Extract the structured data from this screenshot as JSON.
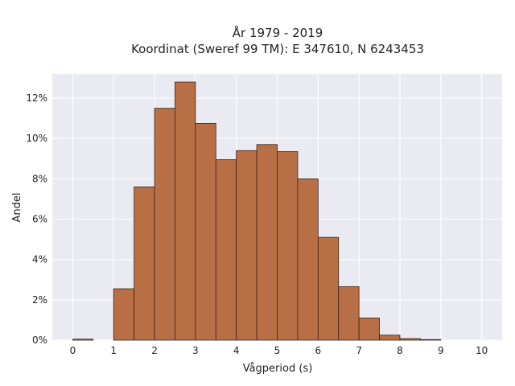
{
  "chart_data": {
    "type": "bar",
    "title_line1": "År 1979 - 2019",
    "title_line2": "Koordinat (Sweref 99 TM): E 347610, N 6243453",
    "xlabel": "Vågperiod (s)",
    "ylabel": "Andel",
    "xlim": [
      -0.5,
      10.5
    ],
    "ylim": [
      0,
      13.2
    ],
    "x_ticks": [
      0,
      1,
      2,
      3,
      4,
      5,
      6,
      7,
      8,
      9,
      10
    ],
    "y_ticks": [
      {
        "value": 0,
        "label": "0%"
      },
      {
        "value": 2,
        "label": "2%"
      },
      {
        "value": 4,
        "label": "4%"
      },
      {
        "value": 6,
        "label": "6%"
      },
      {
        "value": 8,
        "label": "8%"
      },
      {
        "value": 10,
        "label": "10%"
      },
      {
        "value": 12,
        "label": "12%"
      }
    ],
    "bin_width": 0.5,
    "bins": [
      {
        "start": 0.0,
        "value": 0.05
      },
      {
        "start": 0.5,
        "value": 0.0
      },
      {
        "start": 1.0,
        "value": 2.55
      },
      {
        "start": 1.5,
        "value": 7.6
      },
      {
        "start": 2.0,
        "value": 11.5
      },
      {
        "start": 2.5,
        "value": 12.8
      },
      {
        "start": 3.0,
        "value": 10.75
      },
      {
        "start": 3.5,
        "value": 8.95
      },
      {
        "start": 4.0,
        "value": 9.4
      },
      {
        "start": 4.5,
        "value": 9.7
      },
      {
        "start": 5.0,
        "value": 9.35
      },
      {
        "start": 5.5,
        "value": 8.0
      },
      {
        "start": 6.0,
        "value": 5.1
      },
      {
        "start": 6.5,
        "value": 2.65
      },
      {
        "start": 7.0,
        "value": 1.1
      },
      {
        "start": 7.5,
        "value": 0.25
      },
      {
        "start": 8.0,
        "value": 0.08
      },
      {
        "start": 8.5,
        "value": 0.03
      },
      {
        "start": 9.0,
        "value": 0.0
      },
      {
        "start": 9.5,
        "value": 0.0
      }
    ],
    "grid": true,
    "legend": "none",
    "colors": {
      "bar_fill": "#b86f45",
      "bar_edge": "#3a2418",
      "plot_background": "#eaeaf2",
      "grid": "#ffffff"
    }
  }
}
